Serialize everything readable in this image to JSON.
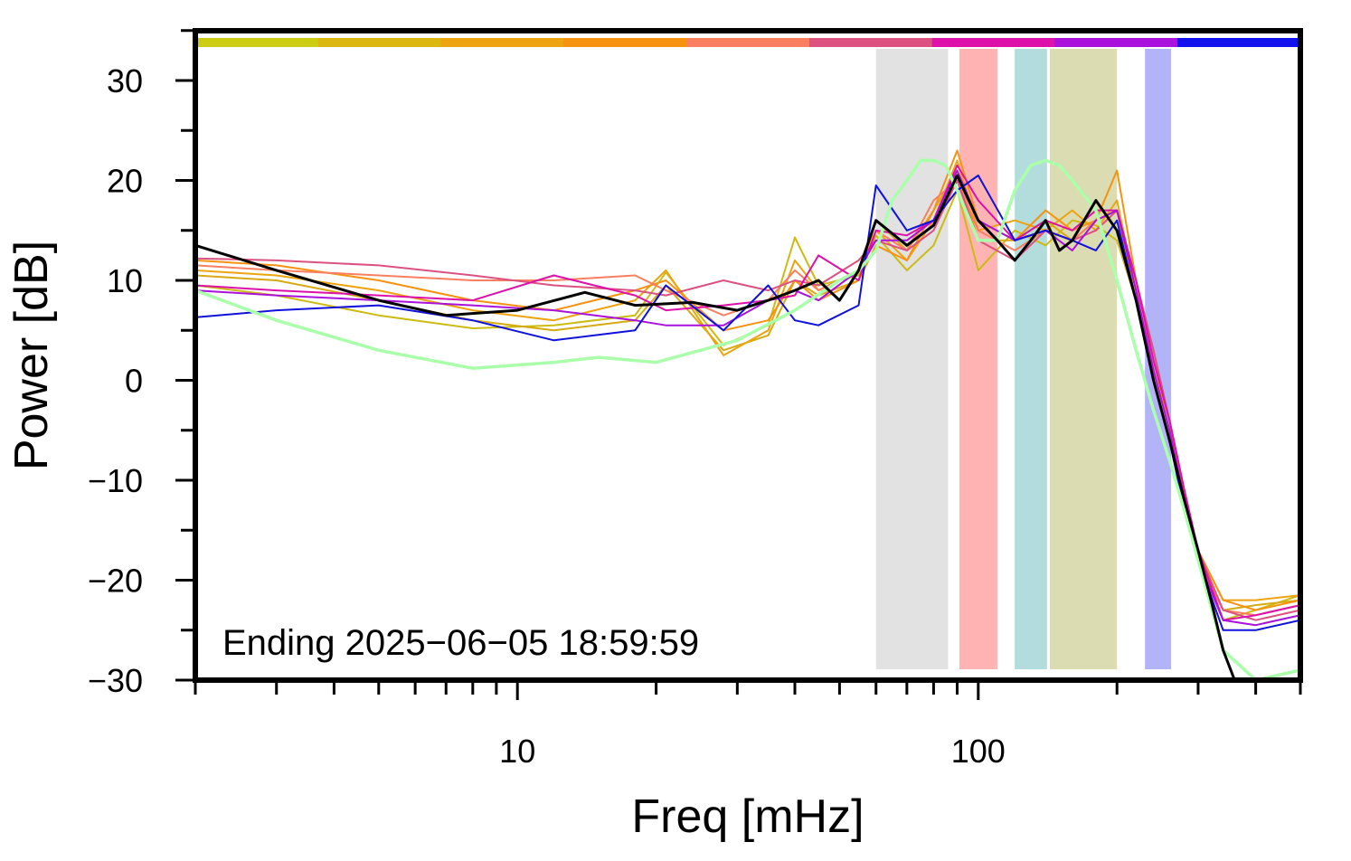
{
  "chart_data": {
    "type": "line",
    "title": "",
    "xlabel": "Freq [mHz]",
    "ylabel": "Power [dB]",
    "x_scale": "log",
    "xlim": [
      2,
      500
    ],
    "ylim": [
      -30,
      35
    ],
    "x_ticks": [
      10,
      100
    ],
    "x_tick_labels": [
      "10",
      "100"
    ],
    "y_ticks": [
      -30,
      -20,
      -10,
      0,
      10,
      20,
      30
    ],
    "y_tick_labels": [
      "−30",
      "−20",
      "−10",
      "0",
      "10",
      "20",
      "30"
    ],
    "grid": false,
    "legend": "none",
    "annotation": "Ending 2025−06−05 18:59:59",
    "color_strip": [
      "#cccc11",
      "#ddb711",
      "#eea311",
      "#f79211",
      "#fa7f61",
      "#dc5180",
      "#dd11aa",
      "#aa11dd",
      "#1111ee"
    ],
    "bands": [
      {
        "from": 60,
        "to": 86,
        "color": "#e2e2e2"
      },
      {
        "from": 91,
        "to": 110,
        "color": "#ffb3b3"
      },
      {
        "from": 120,
        "to": 141,
        "color": "#b3dcdc"
      },
      {
        "from": 143,
        "to": 200,
        "color": "#dcdcb3"
      },
      {
        "from": 230,
        "to": 262,
        "color": "#b3b3f7"
      }
    ],
    "series": [
      {
        "color": "#ccbb11",
        "width": 2,
        "x": [
          2,
          3,
          5,
          8,
          12,
          18,
          21,
          28,
          35,
          40,
          45,
          55,
          60,
          70,
          80,
          90,
          100,
          120,
          140,
          160,
          180,
          200,
          220,
          240,
          260,
          280,
          300,
          340,
          400,
          500
        ],
        "y": [
          9.5,
          8.5,
          6.5,
          5.2,
          5.5,
          6.5,
          10.8,
          3.5,
          5.5,
          14.3,
          9.5,
          10.5,
          14.5,
          11,
          13.5,
          19,
          11,
          15,
          13.5,
          16,
          15.5,
          14,
          8,
          0,
          -6,
          -13,
          -17,
          -24,
          -23,
          -21.5
        ]
      },
      {
        "color": "#d6aa11",
        "width": 2,
        "x": [
          2,
          3,
          5,
          8,
          12,
          18,
          21,
          28,
          35,
          40,
          45,
          55,
          60,
          70,
          80,
          90,
          100,
          120,
          140,
          160,
          180,
          200,
          220,
          240,
          260,
          280,
          300,
          340,
          400,
          500
        ],
        "y": [
          10.5,
          10,
          8,
          6,
          5,
          6,
          9.5,
          3,
          4.5,
          10,
          8.5,
          10,
          16,
          13,
          17,
          21,
          14,
          14,
          16,
          14,
          16,
          17,
          8,
          1,
          -5,
          -12,
          -18,
          -23,
          -22.5,
          -22
        ]
      },
      {
        "color": "#eea311",
        "width": 2,
        "x": [
          2,
          3,
          5,
          8,
          12,
          18,
          21,
          28,
          35,
          40,
          45,
          55,
          60,
          70,
          80,
          90,
          100,
          120,
          140,
          160,
          180,
          200,
          220,
          240,
          260,
          280,
          300,
          340,
          400,
          500
        ],
        "y": [
          11,
          10.5,
          9,
          7,
          6,
          8,
          11,
          2.5,
          5,
          12,
          9,
          11,
          15,
          12,
          16,
          22,
          15,
          16,
          15,
          17,
          15,
          18,
          9,
          1,
          -4,
          -11,
          -17,
          -22,
          -22,
          -21.5
        ]
      },
      {
        "color": "#f79211",
        "width": 2,
        "x": [
          2,
          3,
          5,
          8,
          12,
          18,
          21,
          28,
          35,
          40,
          45,
          55,
          60,
          70,
          80,
          90,
          100,
          120,
          140,
          160,
          180,
          200,
          220,
          240,
          260,
          280,
          300,
          340,
          400,
          500
        ],
        "y": [
          12,
          11.5,
          10,
          8,
          7,
          9,
          10,
          5,
          6,
          10,
          8,
          10,
          13.5,
          12,
          17,
          23,
          16,
          14,
          17,
          15,
          16,
          21,
          10,
          2,
          -4,
          -12,
          -17,
          -22,
          -23,
          -22
        ]
      },
      {
        "color": "#fa7f61",
        "width": 2,
        "x": [
          2,
          3,
          5,
          8,
          12,
          18,
          21,
          28,
          35,
          40,
          45,
          55,
          60,
          70,
          80,
          90,
          100,
          120,
          140,
          160,
          180,
          200,
          220,
          240,
          260,
          280,
          300,
          340,
          400,
          500
        ],
        "y": [
          11.5,
          11,
          10.5,
          10,
          10,
          10.5,
          9,
          6.5,
          8,
          11,
          9,
          11,
          15,
          13,
          18,
          20,
          15,
          13,
          15,
          14,
          16,
          17,
          9,
          1,
          -5,
          -12,
          -18,
          -23,
          -23.5,
          -22.5
        ]
      },
      {
        "color": "#dc5180",
        "width": 2,
        "x": [
          2,
          3,
          5,
          8,
          12,
          18,
          21,
          28,
          35,
          40,
          45,
          55,
          60,
          70,
          80,
          90,
          100,
          120,
          140,
          160,
          180,
          200,
          220,
          240,
          260,
          280,
          300,
          340,
          400,
          500
        ],
        "y": [
          12.2,
          12,
          11.5,
          10.5,
          9.5,
          9,
          8.5,
          10,
          9,
          10,
          9.5,
          12,
          14,
          13,
          15,
          20,
          14,
          12,
          15,
          14,
          15,
          17,
          10,
          3,
          -4,
          -11,
          -17,
          -23,
          -24,
          -23
        ]
      },
      {
        "color": "#dd11aa",
        "width": 2,
        "x": [
          2,
          3,
          5,
          8,
          12,
          18,
          21,
          28,
          35,
          40,
          45,
          55,
          60,
          70,
          80,
          90,
          100,
          120,
          140,
          160,
          180,
          200,
          220,
          240,
          260,
          280,
          300,
          340,
          400,
          500
        ],
        "y": [
          9.5,
          9,
          8.5,
          8,
          10.5,
          8.5,
          7,
          7.5,
          8,
          8.5,
          12.5,
          10,
          15,
          14.5,
          16,
          21.5,
          18,
          14,
          16,
          15,
          17,
          17,
          10,
          2,
          -4,
          -11,
          -17,
          -24,
          -23.5,
          -22.5
        ]
      },
      {
        "color": "#aa11dd",
        "width": 2,
        "x": [
          2,
          3,
          5,
          8,
          12,
          18,
          21,
          28,
          35,
          40,
          45,
          55,
          60,
          70,
          80,
          90,
          100,
          120,
          140,
          160,
          180,
          200,
          220,
          240,
          260,
          280,
          300,
          340,
          400,
          500
        ],
        "y": [
          9,
          8.5,
          8,
          7.5,
          7,
          6,
          5.5,
          5.5,
          8,
          9,
          8,
          11,
          14,
          14,
          16,
          21,
          16,
          14,
          15,
          13,
          16,
          17,
          9,
          1,
          -5,
          -12,
          -18,
          -24,
          -24.5,
          -23.5
        ]
      },
      {
        "color": "#1111dd",
        "width": 2,
        "x": [
          2,
          3,
          5,
          8,
          12,
          18,
          21,
          28,
          35,
          40,
          45,
          55,
          60,
          70,
          80,
          90,
          100,
          120,
          140,
          160,
          180,
          200,
          220,
          240,
          260,
          280,
          300,
          340,
          400,
          500
        ],
        "y": [
          6.3,
          7,
          7.5,
          6,
          4,
          5,
          9.5,
          5,
          9.5,
          6,
          5.5,
          7.5,
          19.5,
          15,
          16,
          19,
          20.5,
          14,
          15,
          14,
          13,
          16,
          8,
          0,
          -6,
          -13,
          -18,
          -25,
          -25,
          -24
        ]
      },
      {
        "color": "#aaffaa",
        "width": 3.5,
        "x": [
          2,
          3,
          5,
          8,
          12,
          15,
          20,
          30,
          40,
          50,
          55,
          60,
          65,
          70,
          75,
          80,
          85,
          90,
          100,
          110,
          120,
          130,
          140,
          150,
          160,
          180,
          200,
          220,
          240,
          260,
          280,
          300,
          340,
          400,
          500
        ],
        "y": [
          9,
          6,
          3,
          1.2,
          1.8,
          2.3,
          1.8,
          4,
          7,
          10,
          11,
          13,
          18,
          20,
          22,
          22,
          21.5,
          19,
          14,
          14,
          19,
          21.5,
          22,
          21.5,
          20,
          17,
          10,
          3,
          -3,
          -8,
          -13,
          -18,
          -27,
          -30,
          -29
        ]
      },
      {
        "color": "#000000",
        "width": 3,
        "x": [
          2,
          3,
          5,
          7,
          10,
          14,
          18,
          24,
          30,
          35,
          40,
          45,
          50,
          55,
          60,
          70,
          80,
          90,
          100,
          110,
          120,
          130,
          140,
          150,
          160,
          180,
          200,
          220,
          240,
          260,
          280,
          300,
          320,
          340,
          360,
          400,
          500
        ],
        "y": [
          13.5,
          11,
          8,
          6.5,
          7,
          8.8,
          7.5,
          7.8,
          7,
          8,
          9,
          10,
          8,
          11,
          16,
          13.5,
          15.5,
          20.5,
          16,
          14,
          12,
          14,
          16,
          13,
          14,
          18,
          15,
          8,
          0,
          -6,
          -12,
          -17,
          -22,
          -27,
          -30,
          -31,
          -32
        ]
      }
    ]
  }
}
